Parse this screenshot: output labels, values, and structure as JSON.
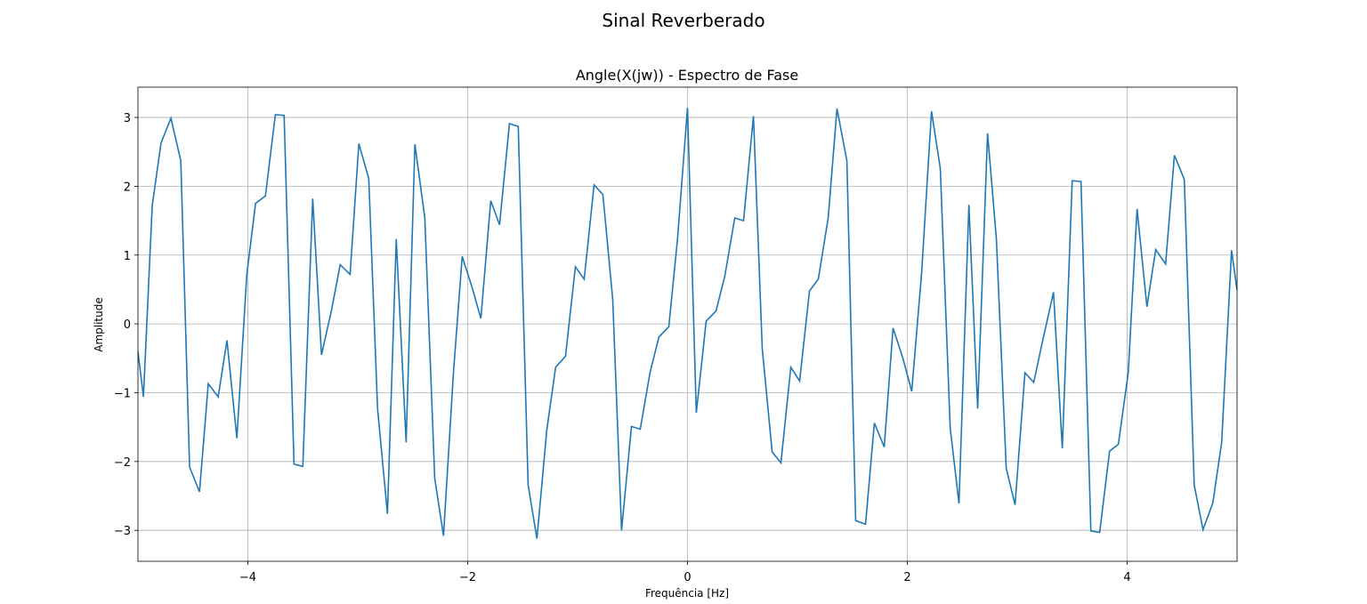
{
  "chart_data": {
    "type": "line",
    "suptitle": "Sinal Reverberado",
    "title": "Angle(X(jw)) - Espectro de Fase",
    "xlabel": "Frequência [Hz]",
    "ylabel": "Amplitude",
    "x": [
      -5.0,
      -4.95,
      -4.87,
      -4.79,
      -4.7,
      -4.61,
      -4.53,
      -4.44,
      -4.36,
      -4.27,
      -4.19,
      -4.1,
      -4.01,
      -3.93,
      -3.84,
      -3.75,
      -3.67,
      -3.58,
      -3.5,
      -3.41,
      -3.33,
      -3.24,
      -3.16,
      -3.07,
      -2.99,
      -2.9,
      -2.82,
      -2.73,
      -2.65,
      -2.56,
      -2.48,
      -2.39,
      -2.3,
      -2.22,
      -2.13,
      -2.05,
      -1.96,
      -1.88,
      -1.79,
      -1.71,
      -1.62,
      -1.54,
      -1.45,
      -1.37,
      -1.28,
      -1.2,
      -1.11,
      -1.02,
      -0.94,
      -0.85,
      -0.77,
      -0.68,
      -0.6,
      -0.51,
      -0.43,
      -0.34,
      -0.26,
      -0.17,
      -0.09,
      0.0,
      0.08,
      0.17,
      0.26,
      0.34,
      0.43,
      0.51,
      0.6,
      0.68,
      0.77,
      0.85,
      0.94,
      1.02,
      1.11,
      1.19,
      1.28,
      1.36,
      1.45,
      1.53,
      1.62,
      1.7,
      1.79,
      1.87,
      1.96,
      2.04,
      2.13,
      2.22,
      2.3,
      2.39,
      2.47,
      2.56,
      2.64,
      2.73,
      2.81,
      2.9,
      2.98,
      3.07,
      3.15,
      3.24,
      3.33,
      3.41,
      3.5,
      3.58,
      3.67,
      3.75,
      3.84,
      3.92,
      4.01,
      4.09,
      4.18,
      4.26,
      4.35,
      4.43,
      4.52,
      4.61,
      4.69,
      4.78,
      4.86,
      4.95,
      5.0
    ],
    "series": [
      {
        "color": "#1f77b4",
        "values": [
          -0.4,
          -1.06,
          1.72,
          2.63,
          2.99,
          2.37,
          -2.08,
          -2.44,
          -0.87,
          -1.06,
          -0.24,
          -1.66,
          0.71,
          1.75,
          1.86,
          3.04,
          3.03,
          -2.04,
          -2.07,
          1.82,
          -0.45,
          0.19,
          0.86,
          0.72,
          2.62,
          2.11,
          -1.23,
          -2.76,
          1.23,
          -1.72,
          2.61,
          1.54,
          -2.24,
          -3.08,
          -0.72,
          0.98,
          0.53,
          0.08,
          1.79,
          1.44,
          2.91,
          2.87,
          -2.34,
          -3.12,
          -1.54,
          -0.63,
          -0.47,
          0.83,
          0.65,
          2.02,
          1.88,
          0.35,
          -3.0,
          -1.49,
          -1.53,
          -0.7,
          -0.19,
          -0.04,
          1.25,
          3.14,
          -1.29,
          0.04,
          0.19,
          0.7,
          1.54,
          1.5,
          3.02,
          -0.36,
          -1.86,
          -2.02,
          -0.63,
          -0.83,
          0.48,
          0.65,
          1.54,
          3.13,
          2.37,
          -2.86,
          -2.91,
          -1.44,
          -1.79,
          -0.06,
          -0.5,
          -0.98,
          0.74,
          3.09,
          2.26,
          -1.51,
          -2.61,
          1.73,
          -1.23,
          2.77,
          1.24,
          -2.1,
          -2.63,
          -0.71,
          -0.85,
          -0.18,
          0.46,
          -1.81,
          2.08,
          2.07,
          -3.01,
          -3.03,
          -1.85,
          -1.75,
          -0.71,
          1.67,
          0.25,
          1.08,
          0.87,
          2.45,
          2.1,
          -2.34,
          -2.99,
          -2.6,
          -1.72,
          1.07,
          0.49
        ]
      }
    ],
    "xlim": [
      -5,
      5
    ],
    "ylim": [
      -3.45,
      3.44
    ],
    "xticks": [
      {
        "value": -4,
        "label": "−4"
      },
      {
        "value": -2,
        "label": "−2"
      },
      0,
      2,
      4
    ],
    "yticks": [
      {
        "value": -3,
        "label": "−3"
      },
      {
        "value": -2,
        "label": "−2"
      },
      {
        "value": -1,
        "label": "−1"
      },
      0,
      1,
      2,
      3
    ],
    "grid": true
  }
}
